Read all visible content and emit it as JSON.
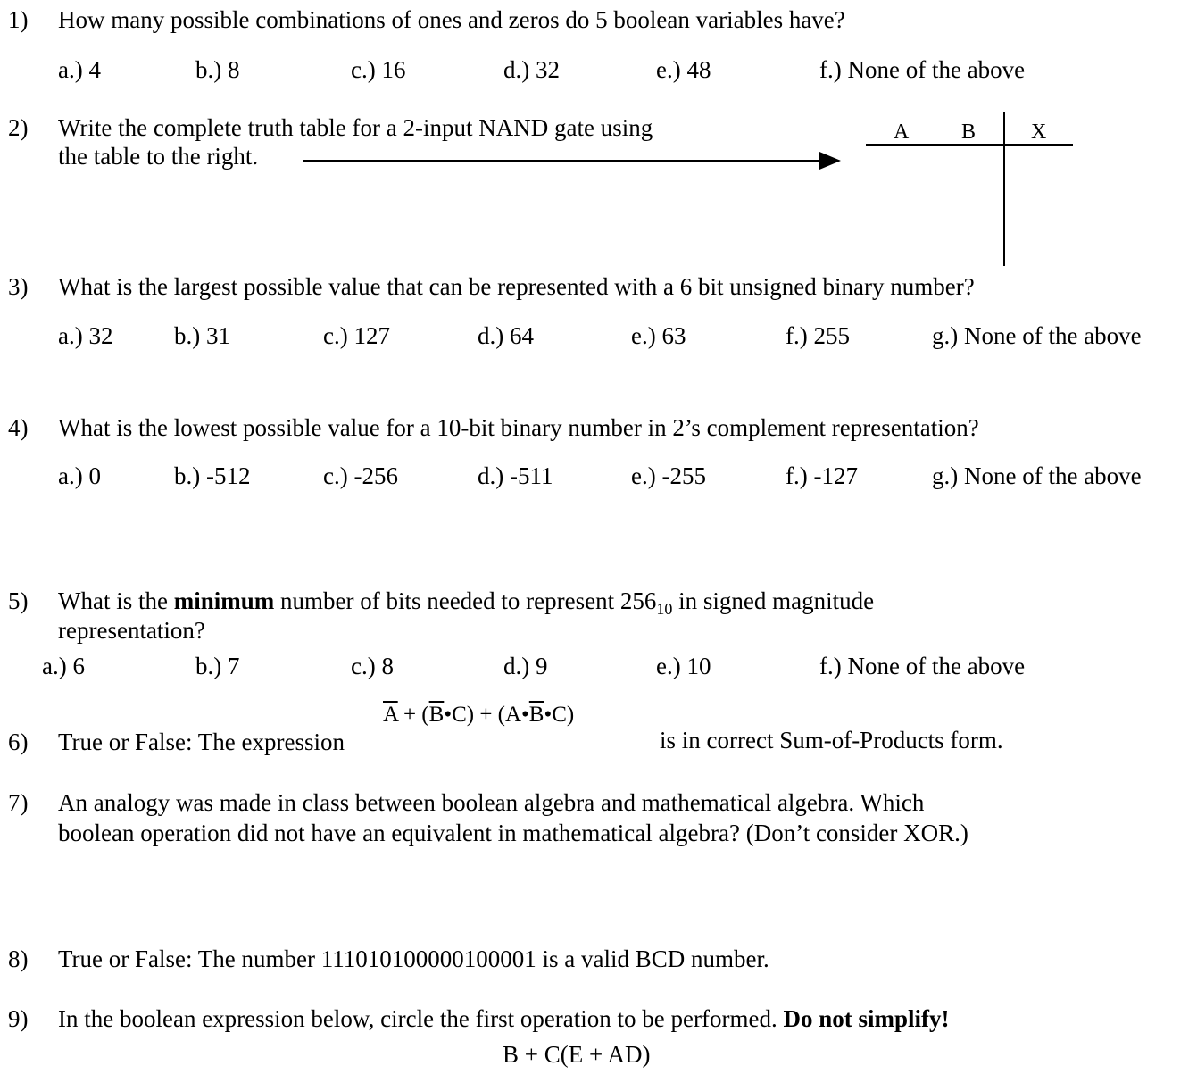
{
  "q1": {
    "num": "1)",
    "text": "How many possible combinations of ones and zeros do 5 boolean variables have?",
    "options": [
      "a.) 4",
      "b.) 8",
      "c.) 16",
      "d.) 32",
      "e.) 48",
      "f.) None of the above"
    ]
  },
  "q2": {
    "num": "2)",
    "line1": "Write the complete truth table for a 2-input NAND gate using",
    "line2": "the table to the right.",
    "table_headers": [
      "A",
      "B",
      "X"
    ]
  },
  "q3": {
    "num": "3)",
    "text": "What is the largest possible value that can be represented with a 6 bit unsigned binary number?",
    "options": [
      "a.) 32",
      "b.) 31",
      "c.) 127",
      "d.) 64",
      "e.) 63",
      "f.) 255",
      "g.) None of the above"
    ]
  },
  "q4": {
    "num": "4)",
    "text": "What is the lowest possible value for a 10-bit binary number in 2’s complement representation?",
    "options": [
      "a.) 0",
      "b.) -512",
      "c.) -256",
      "d.) -511",
      "e.) -255",
      "f.) -127",
      "g.) None of the above"
    ]
  },
  "q5": {
    "num": "5)",
    "text_pre": "What is the ",
    "text_bold": "minimum",
    "text_mid": " number of bits needed to represent 256",
    "subscript": "10",
    "text_post": " in signed magnitude",
    "line2": "representation?",
    "options": [
      "a.) 6",
      "b.) 7",
      "c.) 8",
      "d.) 9",
      "e.) 10",
      "f.) None of the above"
    ]
  },
  "q6": {
    "num": "6)",
    "text_pre": "True or False: The expression",
    "expr": {
      "a": "A",
      "plus1": " + (",
      "b1": "B",
      "dotc": "•C) + (A•",
      "b2": "B",
      "dotc2": "•C)"
    },
    "text_post": "is in correct Sum-of-Products form."
  },
  "q7": {
    "num": "7)",
    "line1": "An analogy was made in class between boolean algebra and mathematical algebra.  Which",
    "line2": "boolean operation did not have an equivalent in mathematical algebra? (Don’t consider XOR.)"
  },
  "q8": {
    "num": "8)",
    "text": "True or False: The number 111010100000100001 is a valid BCD number."
  },
  "q9": {
    "num": "9)",
    "text_pre": "In the boolean expression below, circle the first operation to be performed.  ",
    "text_bold": "Do not simplify!",
    "expression": "B + C(E + AD)"
  }
}
